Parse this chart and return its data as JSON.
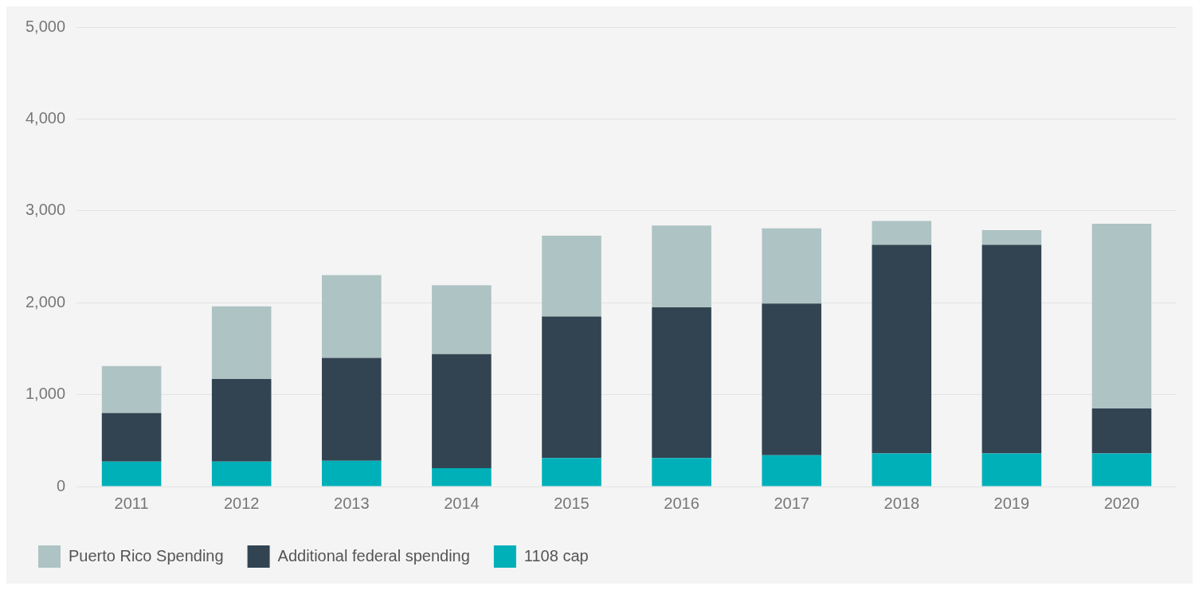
{
  "chart_data": {
    "type": "bar",
    "stacked": true,
    "categories": [
      "2011",
      "2012",
      "2013",
      "2014",
      "2015",
      "2016",
      "2017",
      "2018",
      "2019",
      "2020"
    ],
    "series": [
      {
        "name": "1108 cap",
        "color": "#00b0b9",
        "values": [
          270,
          270,
          280,
          200,
          310,
          310,
          340,
          360,
          360,
          360
        ]
      },
      {
        "name": "Additional federal spending",
        "color": "#324452",
        "values": [
          530,
          900,
          1120,
          1240,
          1540,
          1640,
          1650,
          2270,
          2270,
          490
        ]
      },
      {
        "name": "Puerto Rico Spending",
        "color": "#aec3c3",
        "values": [
          510,
          790,
          900,
          750,
          880,
          890,
          820,
          260,
          160,
          2010
        ]
      }
    ],
    "ylim": [
      0,
      5000
    ],
    "yticks": [
      0,
      {
        "value": 1000,
        "label": "1,000"
      },
      {
        "value": 2000,
        "label": "2,000"
      },
      {
        "value": 3000,
        "label": "3,000"
      },
      {
        "value": 4000,
        "label": "4,000"
      },
      {
        "value": 5000,
        "label": "5,000"
      }
    ],
    "grid": "y",
    "legend": "bottom left"
  }
}
